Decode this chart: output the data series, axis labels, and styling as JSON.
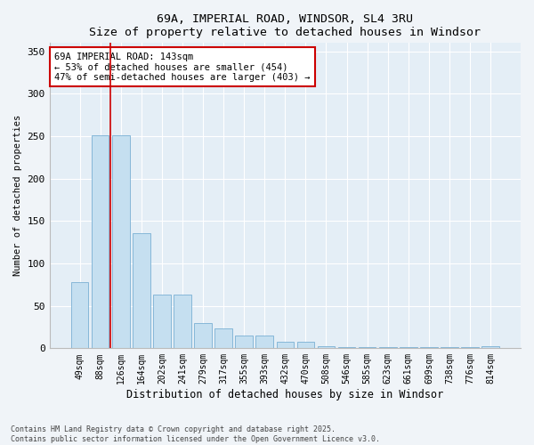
{
  "title": "69A, IMPERIAL ROAD, WINDSOR, SL4 3RU",
  "subtitle": "Size of property relative to detached houses in Windsor",
  "xlabel": "Distribution of detached houses by size in Windsor",
  "ylabel": "Number of detached properties",
  "categories": [
    "49sqm",
    "88sqm",
    "126sqm",
    "164sqm",
    "202sqm",
    "241sqm",
    "279sqm",
    "317sqm",
    "355sqm",
    "393sqm",
    "432sqm",
    "470sqm",
    "508sqm",
    "546sqm",
    "585sqm",
    "623sqm",
    "661sqm",
    "699sqm",
    "738sqm",
    "776sqm",
    "814sqm"
  ],
  "values": [
    78,
    251,
    251,
    136,
    63,
    63,
    30,
    23,
    15,
    15,
    8,
    8,
    2,
    1,
    1,
    1,
    1,
    1,
    1,
    1,
    2
  ],
  "bar_color": "#c5dff0",
  "bar_edge_color": "#7ab0d4",
  "property_line_x": 1.5,
  "annotation_text": "69A IMPERIAL ROAD: 143sqm\n← 53% of detached houses are smaller (454)\n47% of semi-detached houses are larger (403) →",
  "annotation_box_color": "#ffffff",
  "annotation_box_edge": "#cc0000",
  "property_line_color": "#cc0000",
  "ylim": [
    0,
    360
  ],
  "yticks": [
    0,
    50,
    100,
    150,
    200,
    250,
    300,
    350
  ],
  "footer": "Contains HM Land Registry data © Crown copyright and database right 2025.\nContains public sector information licensed under the Open Government Licence v3.0.",
  "bg_color": "#f0f4f8",
  "plot_bg_color": "#e4eef6"
}
